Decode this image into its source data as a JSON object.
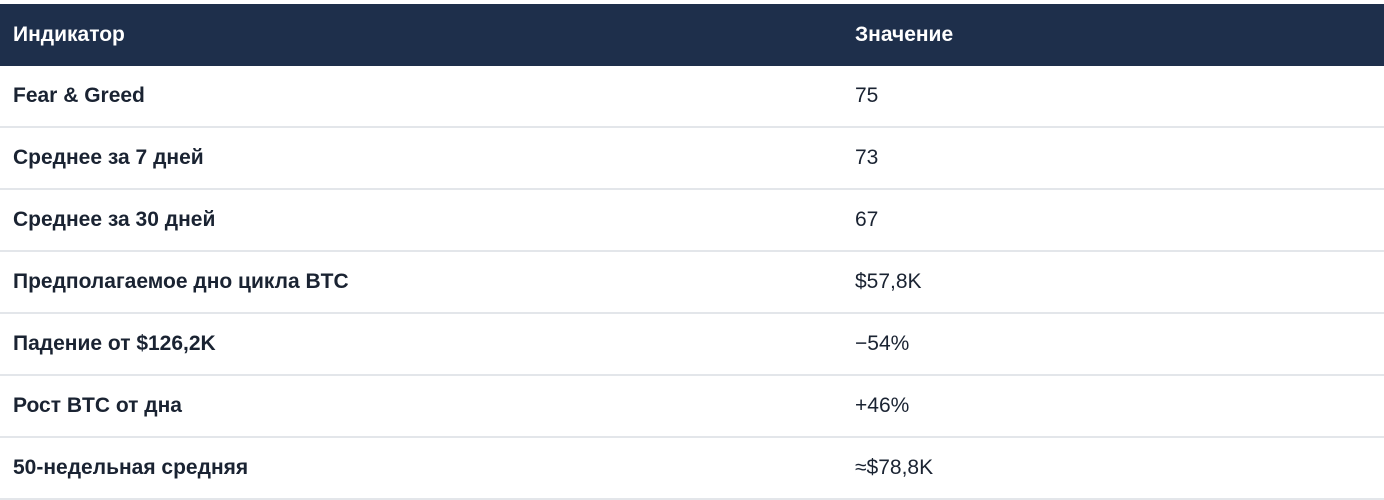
{
  "table": {
    "headers": {
      "indicator": "Индикатор",
      "value": "Значение"
    },
    "rows": [
      {
        "indicator": "Fear & Greed",
        "value": "75"
      },
      {
        "indicator": "Среднее за 7 дней",
        "value": "73"
      },
      {
        "indicator": "Среднее за 30 дней",
        "value": "67"
      },
      {
        "indicator": "Предполагаемое дно цикла BTC",
        "value": "$57,8K"
      },
      {
        "indicator": "Падение от $126,2K",
        "value": "−54%"
      },
      {
        "indicator": "Рост BTC от дна",
        "value": "+46%"
      },
      {
        "indicator": "50-недельная средняя",
        "value": "≈$78,8K"
      }
    ]
  },
  "colors": {
    "header_background": "#1e2f4b",
    "header_text": "#ffffff",
    "row_divider": "#e3e6ea",
    "body_text": "#1a2332"
  }
}
